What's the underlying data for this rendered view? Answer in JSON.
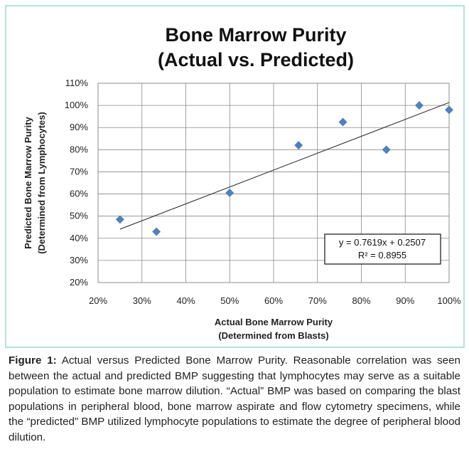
{
  "chart_data": {
    "type": "scatter",
    "title": [
      "Bone Marrow Purity",
      "(Actual vs. Predicted)"
    ],
    "x_label": [
      "Actual Bone Marrow Purity",
      "(Determined from Blasts)"
    ],
    "y_label": [
      "Predicted Bone Marrow Purity",
      "(Determined from Lymphocytes)"
    ],
    "x": [
      25,
      33.3,
      50,
      65.7,
      75.8,
      85.7,
      93.2,
      100
    ],
    "values": [
      48.5,
      43,
      60.5,
      82,
      92.5,
      80,
      100,
      98
    ],
    "color": "#4f81bd",
    "xlim": [
      20,
      100
    ],
    "xticks": [
      {
        "value": 20,
        "label": "20%"
      },
      {
        "value": 30,
        "label": "30%"
      },
      {
        "value": 40,
        "label": "40%"
      },
      {
        "value": 50,
        "label": "50%"
      },
      {
        "value": 60,
        "label": "60%"
      },
      {
        "value": 70,
        "label": "70%"
      },
      {
        "value": 80,
        "label": "80%"
      },
      {
        "value": 90,
        "label": "90%"
      },
      {
        "value": 100,
        "label": "100%"
      }
    ],
    "ylim": [
      20,
      110
    ],
    "yticks": [
      {
        "value": 20,
        "label": "20%"
      },
      {
        "value": 30,
        "label": "30%"
      },
      {
        "value": 40,
        "label": "40%"
      },
      {
        "value": 50,
        "label": "50%"
      },
      {
        "value": 60,
        "label": "60%"
      },
      {
        "value": 70,
        "label": "70%"
      },
      {
        "value": 80,
        "label": "80%"
      },
      {
        "value": 90,
        "label": "90%"
      },
      {
        "value": 100,
        "label": "100%"
      },
      {
        "value": 110,
        "label": "110%"
      }
    ],
    "grid": true,
    "trendline": {
      "x": [
        25,
        100
      ],
      "y": [
        44.1,
        101.3
      ]
    },
    "annotation": [
      "y = 0.7619x + 0.2507",
      "R² = 0.8955"
    ]
  },
  "caption": {
    "label": "Figure 1:",
    "text": " Actual versus Predicted Bone Marrow Purity. Reasonable correlation was seen between the actual and predicted BMP suggesting that lymphocytes may serve as a suitable population to estimate bone marrow dilution. “Actual” BMP was based on comparing the blast populations in peripheral blood, bone marrow aspirate and flow cytometry specimens, while the “predicted” BMP utilized lymphocyte populations to estimate the degree of peripheral blood dilution."
  }
}
